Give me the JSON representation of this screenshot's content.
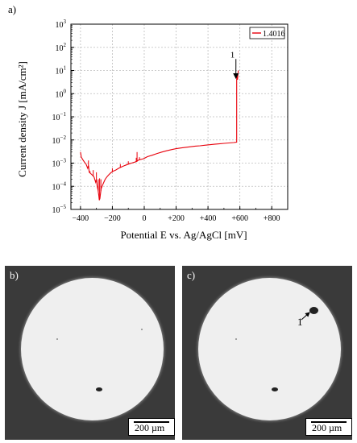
{
  "panels": {
    "a_label": "a)",
    "b_label": "b)",
    "c_label": "c)"
  },
  "chart_data": {
    "type": "line",
    "xlabel": "Potential E vs. Ag/AgCl [mV]",
    "ylabel": "Current density J [mA/cm²]",
    "xlim": [
      -460,
      900
    ],
    "ylim_log10": [
      -5,
      3
    ],
    "yscale": "log",
    "grid": true,
    "legend_position": "top-right",
    "x_ticks": [
      "−400",
      "−200",
      "0",
      "+200",
      "+400",
      "+600",
      "+800"
    ],
    "x_tick_values": [
      -400,
      -200,
      0,
      200,
      400,
      600,
      800
    ],
    "y_tick_exponents": [
      -5,
      -4,
      -3,
      -2,
      -1,
      0,
      1,
      2,
      3
    ],
    "series": [
      {
        "name": "1.4016",
        "color": "#e8000b",
        "points": [
          [
            -400,
            0.003
          ],
          [
            -395,
            0.0018
          ],
          [
            -385,
            0.0014
          ],
          [
            -375,
            0.0011
          ],
          [
            -365,
            0.0009
          ],
          [
            -355,
            0.0006
          ],
          [
            -350,
            0.0008
          ],
          [
            -345,
            0.0004
          ],
          [
            -335,
            0.00035
          ],
          [
            -325,
            0.0003
          ],
          [
            -315,
            0.00025
          ],
          [
            -305,
            0.00015
          ],
          [
            -300,
            0.0002
          ],
          [
            -295,
            0.0001
          ],
          [
            -290,
            7e-05
          ],
          [
            -285,
            4e-05
          ],
          [
            -282,
            2.5e-05
          ],
          [
            -278,
            3e-05
          ],
          [
            -275,
            4.5e-05
          ],
          [
            -270,
            8e-05
          ],
          [
            -262,
            0.00011
          ],
          [
            -255,
            0.00014
          ],
          [
            -245,
            0.0002
          ],
          [
            -235,
            0.00025
          ],
          [
            -225,
            0.0003
          ],
          [
            -210,
            0.00038
          ],
          [
            -195,
            0.00045
          ],
          [
            -180,
            0.0005
          ],
          [
            -160,
            0.0006
          ],
          [
            -140,
            0.0007
          ],
          [
            -120,
            0.0008
          ],
          [
            -100,
            0.0009
          ],
          [
            -80,
            0.001
          ],
          [
            -60,
            0.0011
          ],
          [
            -45,
            0.0012
          ],
          [
            -40,
            0.0013
          ],
          [
            -30,
            0.0014
          ],
          [
            -10,
            0.0015
          ],
          [
            0,
            0.0016
          ],
          [
            20,
            0.0019
          ],
          [
            50,
            0.0022
          ],
          [
            80,
            0.0026
          ],
          [
            110,
            0.003
          ],
          [
            140,
            0.0034
          ],
          [
            170,
            0.0038
          ],
          [
            200,
            0.0042
          ],
          [
            230,
            0.0045
          ],
          [
            260,
            0.0048
          ],
          [
            290,
            0.0051
          ],
          [
            320,
            0.0054
          ],
          [
            350,
            0.0056
          ],
          [
            380,
            0.0059
          ],
          [
            410,
            0.0062
          ],
          [
            440,
            0.0065
          ],
          [
            470,
            0.0068
          ],
          [
            500,
            0.0071
          ],
          [
            530,
            0.0074
          ],
          [
            560,
            0.0077
          ],
          [
            580,
            0.008
          ],
          [
            580,
            6.0
          ],
          [
            585,
            4.0
          ],
          [
            590,
            10.0
          ]
        ],
        "spikes": [
          [
            -350,
            0.0013
          ],
          [
            -340,
            0.00045
          ],
          [
            -320,
            0.0005
          ],
          [
            -300,
            0.0004
          ],
          [
            -288,
            0.0002
          ],
          [
            -280,
            0.00022
          ],
          [
            -272,
            0.0002
          ],
          [
            -200,
            0.0006
          ],
          [
            -150,
            0.0009
          ],
          [
            -100,
            0.0012
          ],
          [
            -50,
            0.0017
          ],
          [
            -45,
            0.003
          ],
          [
            -30,
            0.0018
          ],
          [
            10,
            0.0018
          ]
        ]
      }
    ],
    "annotations": [
      {
        "text": "1",
        "x": 555,
        "y_exp": 1.6,
        "arrow_to_x": 580,
        "arrow_to_y_exp": 0.6
      }
    ]
  },
  "micrographs": {
    "b": {
      "scale_text": "200 µm"
    },
    "c": {
      "scale_text": "200 µm",
      "pit_label": "1"
    }
  }
}
